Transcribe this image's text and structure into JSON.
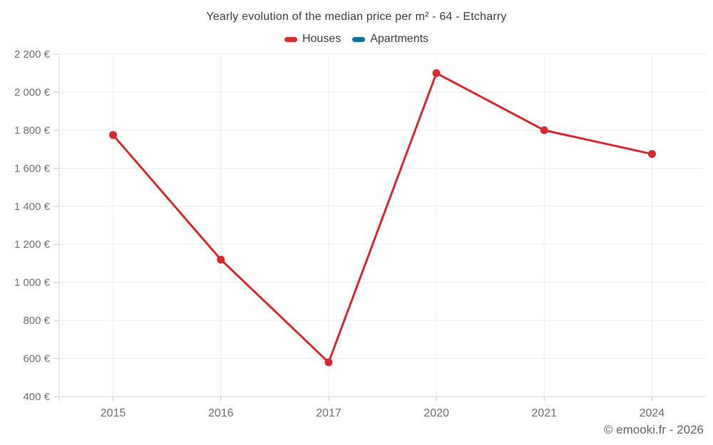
{
  "title": "Yearly evolution of the median price per m² - 64 - Etcharry",
  "legend": [
    {
      "label": "Houses",
      "color": "#d9282e"
    },
    {
      "label": "Apartments",
      "color": "#0e72a3"
    }
  ],
  "footer": "© emooki.fr - 2026",
  "chart_data": {
    "type": "line",
    "title": "Yearly evolution of the median price per m² - 64 - Etcharry",
    "categories": [
      "2015",
      "2016",
      "2017",
      "2020",
      "2021",
      "2024"
    ],
    "series": [
      {
        "name": "Houses",
        "color": "#d9282e",
        "values": [
          1775,
          1120,
          580,
          2100,
          1800,
          1675
        ]
      },
      {
        "name": "Apartments",
        "color": "#0e72a3",
        "values": [
          null,
          null,
          null,
          null,
          null,
          null
        ]
      }
    ],
    "xlabel": "",
    "ylabel": "",
    "ylim": [
      400,
      2200
    ],
    "y_ticks": [
      400,
      600,
      800,
      1000,
      1200,
      1400,
      1600,
      1800,
      2000,
      2200
    ],
    "y_tick_labels": [
      "400 €",
      "600 €",
      "800 €",
      "1 000 €",
      "1 200 €",
      "1 400 €",
      "1 600 €",
      "1 800 €",
      "2 000 €",
      "2 200 €"
    ],
    "grid": true,
    "legend_position": "top",
    "currency_suffix": " €"
  }
}
